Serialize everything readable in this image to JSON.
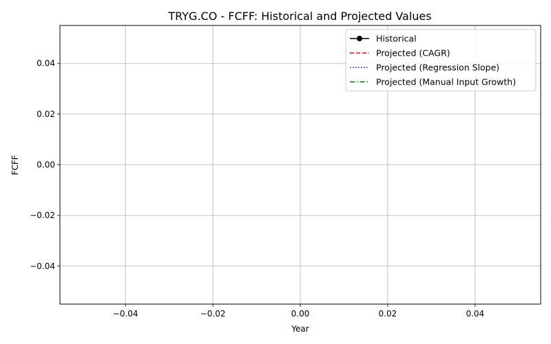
{
  "chart_data": {
    "type": "line",
    "title": "TRYG.CO - FCFF: Historical and Projected Values",
    "xlabel": "Year",
    "ylabel": "FCFF",
    "xlim": [
      -0.055,
      0.055
    ],
    "ylim": [
      -0.055,
      0.055
    ],
    "x_ticks": [
      -0.04,
      -0.02,
      0.0,
      0.02,
      0.04
    ],
    "x_tick_labels": [
      "−0.04",
      "−0.02",
      "0.00",
      "0.02",
      "0.04"
    ],
    "y_ticks": [
      -0.04,
      -0.02,
      0.0,
      0.02,
      0.04
    ],
    "y_tick_labels": [
      "−0.04",
      "−0.02",
      "0.00",
      "0.02",
      "0.04"
    ],
    "grid": true,
    "legend_position": "top-right",
    "series": [
      {
        "name": "Historical",
        "color": "#000000",
        "style": "solid-marker",
        "x": [],
        "y": []
      },
      {
        "name": "Projected (CAGR)",
        "color": "#ff0000",
        "style": "dashed",
        "x": [],
        "y": []
      },
      {
        "name": "Projected (Regression Slope)",
        "color": "#0000ff",
        "style": "dotted",
        "x": [],
        "y": []
      },
      {
        "name": "Projected (Manual Input Growth)",
        "color": "#008000",
        "style": "dashdot",
        "x": [],
        "y": []
      }
    ]
  }
}
